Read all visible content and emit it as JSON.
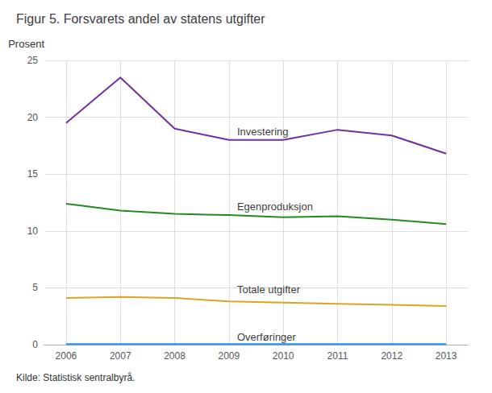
{
  "chart_data": {
    "type": "line",
    "title": "Figur 5. Forsvarets andel av statens utgifter",
    "ylabel": "Prosent",
    "source": "Kilde: Statistisk sentralbyrå.",
    "x": [
      2006,
      2007,
      2008,
      2009,
      2010,
      2011,
      2012,
      2013
    ],
    "series": [
      {
        "name": "Investering",
        "color": "#7030A0",
        "values": [
          19.5,
          23.5,
          19.0,
          18.0,
          18.0,
          18.9,
          18.4,
          16.8
        ]
      },
      {
        "name": "Egenproduksjon",
        "color": "#228B22",
        "values": [
          12.4,
          11.8,
          11.5,
          11.4,
          11.2,
          11.3,
          11.0,
          10.6
        ]
      },
      {
        "name": "Totale utgifter",
        "color": "#DAA520",
        "values": [
          4.1,
          4.2,
          4.1,
          3.8,
          3.7,
          3.6,
          3.5,
          3.4
        ]
      },
      {
        "name": "Overføringer",
        "color": "#1E90FF",
        "values": [
          0.05,
          0.05,
          0.05,
          0.05,
          0.05,
          0.05,
          0.05,
          0.05
        ]
      }
    ],
    "annotations": [
      {
        "text": "Investering",
        "x": 2009.15,
        "y": 18.7
      },
      {
        "text": "Egenproduksjon",
        "x": 2009.15,
        "y": 12.15
      },
      {
        "text": "Totale utgifter",
        "x": 2009.15,
        "y": 4.85
      },
      {
        "text": "Overføringer",
        "x": 2009.15,
        "y": 0.7
      }
    ],
    "xlim": [
      2005.6,
      2013.4
    ],
    "xticks": [
      2006,
      2007,
      2008,
      2009,
      2010,
      2011,
      2012,
      2013
    ],
    "ylim": [
      0,
      25
    ],
    "yticks": [
      0,
      5,
      10,
      15,
      20,
      25
    ],
    "grid": true
  }
}
